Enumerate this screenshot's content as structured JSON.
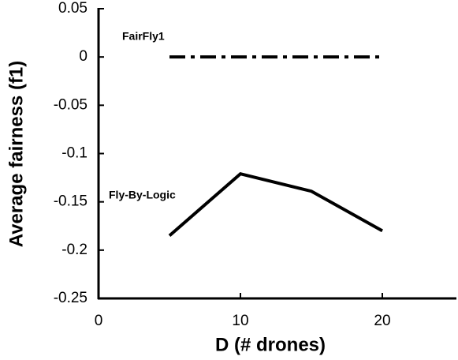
{
  "chart_data": {
    "type": "line",
    "x_label": "D (# drones)",
    "y_label": "Average fairness (f1)",
    "x": [
      5,
      10,
      15,
      20
    ],
    "series": [
      {
        "name": "FairFly1",
        "color": "#000000",
        "dash": "dashdot",
        "values": [
          0,
          0,
          0,
          0
        ]
      },
      {
        "name": "Fly-By-Logic",
        "color": "#000000",
        "dash": "solid",
        "values": [
          -0.185,
          -0.121,
          -0.139,
          -0.18
        ]
      }
    ],
    "xlim": [
      0,
      25
    ],
    "xticks": [
      0,
      10,
      20
    ],
    "ylim": [
      -0.25,
      0.05
    ],
    "yticks": [
      0.05,
      0,
      -0.05,
      -0.1,
      -0.15,
      -0.2,
      -0.25
    ],
    "grid": false
  }
}
